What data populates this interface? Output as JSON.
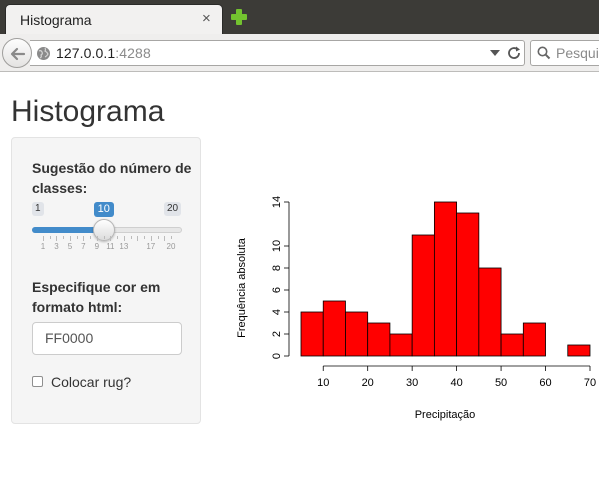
{
  "browser": {
    "tab_title": "Histograma",
    "tab_close": "×",
    "url_host": "127.0.0.1",
    "url_port": ":4288",
    "search_placeholder": "Pesqui"
  },
  "page": {
    "title": "Histograma"
  },
  "sidebar": {
    "bins_label": "Sugestão do número de classes:",
    "slider": {
      "min_label": "1",
      "max_label": "20",
      "value_label": "10",
      "min": 1,
      "max": 20,
      "value": 10,
      "tick_labels": [
        "1",
        "3",
        "5",
        "7",
        "9",
        "11",
        "13",
        "17",
        "20"
      ]
    },
    "color_label": "Especifique cor em formato html:",
    "color_value": "FF0000",
    "rug_label": "Colocar rug?",
    "rug_checked": false
  },
  "chart_data": {
    "type": "bar",
    "title": "",
    "xlabel": "Precipitação",
    "ylabel": "Frequência absoluta",
    "bar_color": "#FF0000",
    "bin_edges": [
      5,
      10,
      15,
      20,
      25,
      30,
      35,
      40,
      45,
      50,
      55,
      60,
      65,
      70
    ],
    "values": [
      4,
      5,
      4,
      3,
      2,
      11,
      14,
      13,
      8,
      2,
      3,
      0,
      1
    ],
    "xlim": [
      5,
      70
    ],
    "ylim": [
      0,
      14
    ],
    "xticks": [
      "10",
      "20",
      "30",
      "40",
      "50",
      "60",
      "70"
    ],
    "yticks": [
      "0",
      "2",
      "4",
      "6",
      "8",
      "10",
      "14"
    ],
    "grid": false,
    "legend": "none"
  }
}
